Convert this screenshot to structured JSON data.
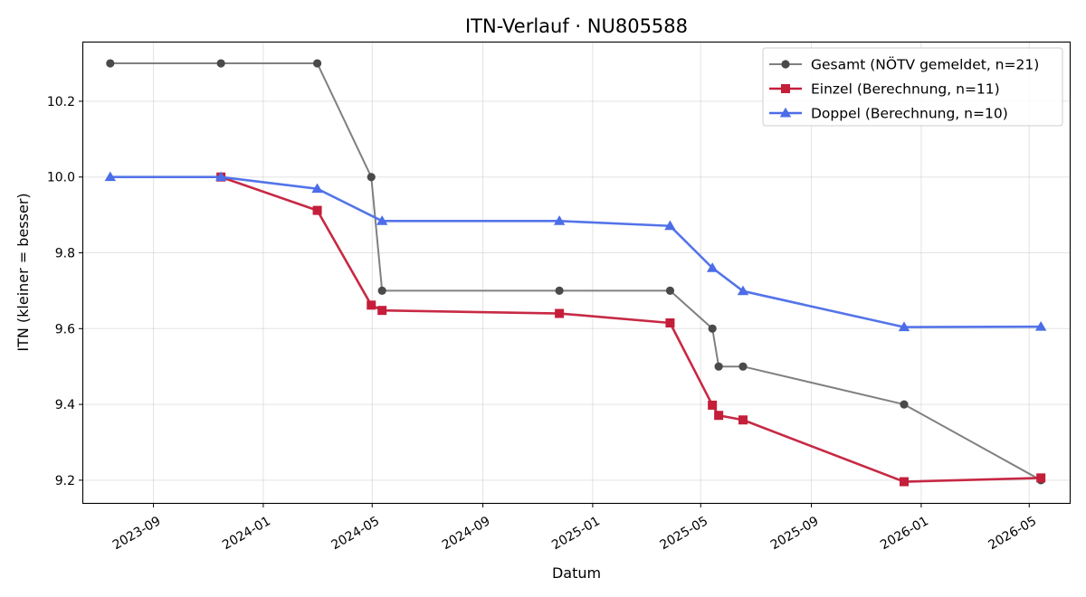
{
  "chart_data": {
    "type": "line",
    "title": "ITN-Verlauf · NU805588",
    "xlabel": "Datum",
    "ylabel": "ITN  (kleiner = besser)",
    "x_type": "date",
    "xlim": [
      "2023-06-15",
      "2026-06-15"
    ],
    "ylim": [
      9.14,
      10.355
    ],
    "x_ticks": [
      "2023-09",
      "2024-01",
      "2024-05",
      "2024-09",
      "2025-01",
      "2025-05",
      "2025-09",
      "2026-01",
      "2026-05"
    ],
    "y_ticks": [
      9.2,
      9.4,
      9.6,
      9.8,
      10.0,
      10.2
    ],
    "y_tick_labels": [
      "9.2",
      "9.4",
      "9.6",
      "9.8",
      "10.0",
      "10.2"
    ],
    "grid": true,
    "legend_position": "top-right",
    "series": [
      {
        "name": "Gesamt (NÖTV gemeldet, n=21)",
        "color": "#808080",
        "marker_color": "#4a4a4a",
        "marker": "circle",
        "points": [
          {
            "x": "2023-07-15",
            "y": 10.3
          },
          {
            "x": "2023-11-15",
            "y": 10.3
          },
          {
            "x": "2024-03-01",
            "y": 10.3
          },
          {
            "x": "2024-04-30",
            "y": 10.0
          },
          {
            "x": "2024-05-12",
            "y": 9.7
          },
          {
            "x": "2024-11-25",
            "y": 9.7
          },
          {
            "x": "2025-03-28",
            "y": 9.7
          },
          {
            "x": "2025-05-14",
            "y": 9.6
          },
          {
            "x": "2025-05-21",
            "y": 9.5
          },
          {
            "x": "2025-06-17",
            "y": 9.5
          },
          {
            "x": "2025-12-13",
            "y": 9.4
          },
          {
            "x": "2026-05-14",
            "y": 9.2
          }
        ]
      },
      {
        "name": "Einzel (Berechnung, n=11)",
        "color": "#c41e3a",
        "marker_color": "#c41e3a",
        "marker": "square",
        "points": [
          {
            "x": "2023-11-15",
            "y": 10.0
          },
          {
            "x": "2024-03-01",
            "y": 9.912
          },
          {
            "x": "2024-04-30",
            "y": 9.662
          },
          {
            "x": "2024-05-12",
            "y": 9.648
          },
          {
            "x": "2024-11-25",
            "y": 9.64
          },
          {
            "x": "2025-03-28",
            "y": 9.615
          },
          {
            "x": "2025-05-14",
            "y": 9.398
          },
          {
            "x": "2025-05-21",
            "y": 9.371
          },
          {
            "x": "2025-06-17",
            "y": 9.359
          },
          {
            "x": "2025-12-13",
            "y": 9.196
          },
          {
            "x": "2026-05-14",
            "y": 9.206
          }
        ]
      },
      {
        "name": "Doppel (Berechnung, n=10)",
        "color": "#4b6de8",
        "marker_color": "#4b6de8",
        "marker": "triangle",
        "points": [
          {
            "x": "2023-07-15",
            "y": 10.0
          },
          {
            "x": "2023-11-15",
            "y": 10.0
          },
          {
            "x": "2024-03-01",
            "y": 9.969
          },
          {
            "x": "2024-05-12",
            "y": 9.884
          },
          {
            "x": "2024-11-25",
            "y": 9.884
          },
          {
            "x": "2025-03-28",
            "y": 9.871
          },
          {
            "x": "2025-05-14",
            "y": 9.76
          },
          {
            "x": "2025-06-17",
            "y": 9.699
          },
          {
            "x": "2025-12-13",
            "y": 9.604
          },
          {
            "x": "2026-05-14",
            "y": 9.605
          }
        ]
      }
    ]
  }
}
